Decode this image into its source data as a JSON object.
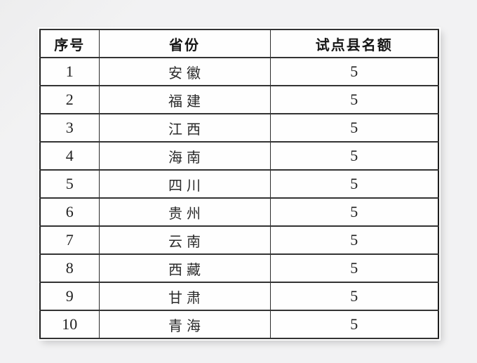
{
  "colors": {
    "page_background": "#f2f2f3",
    "table_background": "#fefefe",
    "border": "#2b2b2b",
    "text": "#1f1f1f"
  },
  "table": {
    "headers": [
      "序号",
      "省份",
      "试点县名额"
    ],
    "rows": [
      [
        "1",
        "安徽",
        "5"
      ],
      [
        "2",
        "福建",
        "5"
      ],
      [
        "3",
        "江西",
        "5"
      ],
      [
        "4",
        "海南",
        "5"
      ],
      [
        "5",
        "四川",
        "5"
      ],
      [
        "6",
        "贵州",
        "5"
      ],
      [
        "7",
        "云南",
        "5"
      ],
      [
        "8",
        "西藏",
        "5"
      ],
      [
        "9",
        "甘肃",
        "5"
      ],
      [
        "10",
        "青海",
        "5"
      ]
    ]
  }
}
